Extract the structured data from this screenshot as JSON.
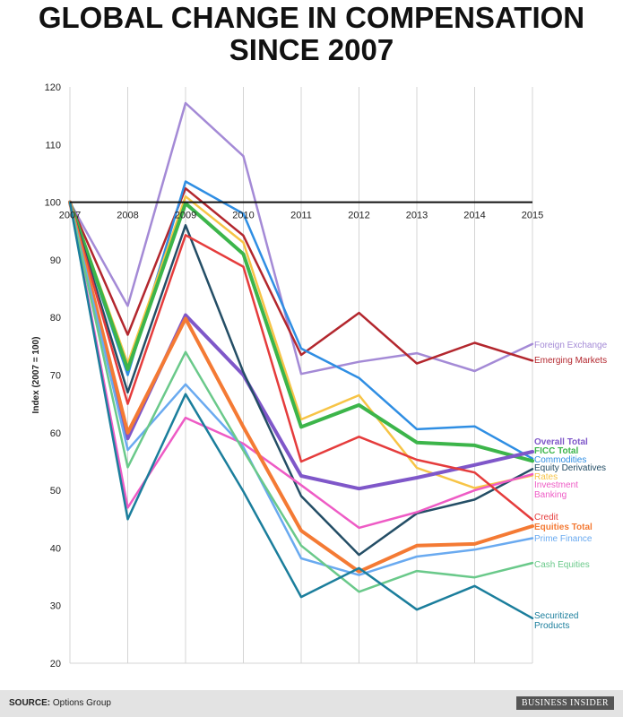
{
  "title": {
    "line1": "GLOBAL CHANGE IN COMPENSATION",
    "line2": "SINCE 2007"
  },
  "footer": {
    "source_label": "SOURCE:",
    "source_text": "Options Group",
    "brand": "BUSINESS INSIDER"
  },
  "chart_data": {
    "type": "line",
    "ylabel": "Index (2007 = 100)",
    "xlabel": "",
    "x": [
      "2007",
      "2008",
      "2009",
      "2010",
      "2011",
      "2012",
      "2013",
      "2014",
      "2015"
    ],
    "yticks": [
      20,
      30,
      40,
      50,
      60,
      70,
      80,
      90,
      100,
      110,
      120
    ],
    "ylim": [
      20,
      120
    ],
    "baseline": 100,
    "grid": "vertical",
    "legend": "right-end labels",
    "series": [
      {
        "name": "Foreign Exchange",
        "color": "#a48ad6",
        "width": 2.5,
        "bold": false,
        "values": [
          100,
          82,
          117.2,
          108,
          70.2,
          72.3,
          73.8,
          70.7,
          75.4
        ]
      },
      {
        "name": "Emerging Markets",
        "color": "#b3272e",
        "width": 2.5,
        "bold": false,
        "values": [
          100,
          77,
          102.4,
          94.2,
          73.5,
          80.8,
          72,
          75.6,
          72.5
        ]
      },
      {
        "name": "Commodities",
        "color": "#2f8ee3",
        "width": 2.5,
        "bold": false,
        "values": [
          100,
          70,
          103.6,
          98,
          74.6,
          69.5,
          60.6,
          61.1,
          55.5
        ]
      },
      {
        "name": "Rates",
        "color": "#f7c446",
        "width": 2.5,
        "bold": false,
        "values": [
          100,
          72,
          101,
          93,
          62.3,
          66.5,
          53.9,
          50.4,
          52.6
        ]
      },
      {
        "name": "FICC Total",
        "color": "#3cb54a",
        "width": 4,
        "bold": true,
        "values": [
          100,
          71,
          99.8,
          91,
          61,
          64.8,
          58.3,
          57.8,
          55.1
        ]
      },
      {
        "name": "Overall Total",
        "color": "#7f57c9",
        "width": 4,
        "bold": true,
        "values": [
          100,
          59,
          80.4,
          70,
          52.5,
          50.3,
          52.2,
          54.4,
          56.7
        ]
      },
      {
        "name": "Equity Derivatives",
        "color": "#244e66",
        "width": 2.5,
        "bold": false,
        "values": [
          100,
          67,
          96,
          70.5,
          49,
          38.8,
          46,
          48.4,
          53.7
        ]
      },
      {
        "name": "Investment Banking",
        "color": "#ee5bc5",
        "width": 2.5,
        "bold": false,
        "values": [
          100,
          47,
          62.6,
          58.1,
          50.9,
          43.5,
          46.2,
          50,
          52.8
        ]
      },
      {
        "name": "Credit",
        "color": "#e53c3c",
        "width": 2.5,
        "bold": false,
        "values": [
          100,
          65,
          94.3,
          88.8,
          55,
          59.3,
          55.3,
          53.1,
          44.9
        ]
      },
      {
        "name": "Equities Total",
        "color": "#f47a34",
        "width": 4,
        "bold": true,
        "values": [
          100,
          60,
          79.8,
          61,
          43,
          35.9,
          40.4,
          40.7,
          43.8
        ]
      },
      {
        "name": "Prime Finance",
        "color": "#6aaaf0",
        "width": 2.5,
        "bold": false,
        "values": [
          100,
          57,
          68.4,
          57.5,
          38.2,
          35.3,
          38.5,
          39.7,
          41.7
        ]
      },
      {
        "name": "Cash Equities",
        "color": "#6ac98a",
        "width": 2.5,
        "bold": false,
        "values": [
          100,
          54,
          74,
          56.9,
          40.4,
          32.4,
          36,
          34.9,
          37.4
        ]
      },
      {
        "name": "Securitized Products",
        "color": "#1b7e9c",
        "width": 2.5,
        "bold": false,
        "values": [
          100,
          45,
          66.7,
          49.8,
          31.5,
          36.5,
          29.3,
          33.4,
          27.8
        ]
      }
    ],
    "end_labels": [
      {
        "series": "Foreign Exchange",
        "lines": [
          "Foreign Exchange"
        ]
      },
      {
        "series": "Emerging Markets",
        "lines": [
          "Emerging Markets"
        ]
      },
      {
        "series": "Overall Total",
        "lines": [
          "Overall Total"
        ]
      },
      {
        "series": "FICC Total",
        "lines": [
          "FICC Total"
        ]
      },
      {
        "series": "Commodities",
        "lines": [
          "Commodities"
        ]
      },
      {
        "series": "Equity Derivatives",
        "lines": [
          "Equity Derivatives"
        ]
      },
      {
        "series": "Rates",
        "lines": [
          "Rates"
        ]
      },
      {
        "series": "Investment Banking",
        "lines": [
          "Investment",
          "Banking"
        ]
      },
      {
        "series": "Credit",
        "lines": [
          "Credit"
        ]
      },
      {
        "series": "Equities Total",
        "lines": [
          "Equities Total"
        ]
      },
      {
        "series": "Prime Finance",
        "lines": [
          "Prime Finance"
        ]
      },
      {
        "series": "Cash Equities",
        "lines": [
          "Cash Equities"
        ]
      },
      {
        "series": "Securitized Products",
        "lines": [
          "Securitized",
          "Products"
        ]
      }
    ]
  }
}
